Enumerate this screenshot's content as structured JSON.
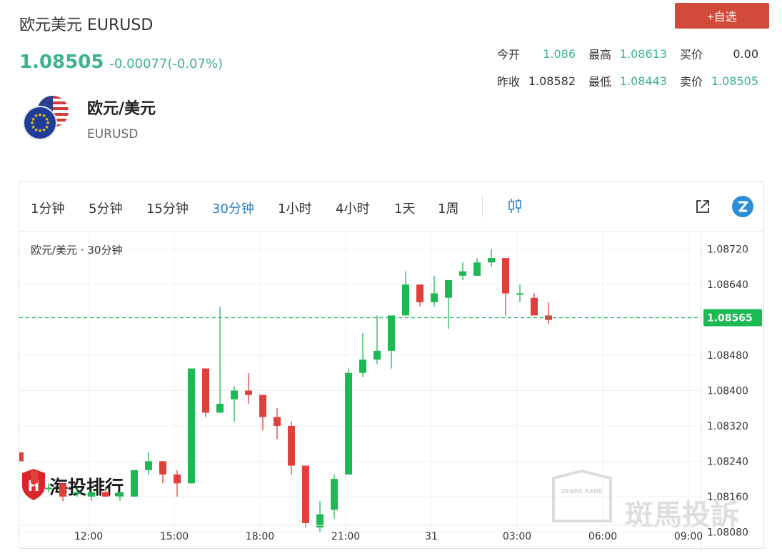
{
  "header": {
    "title": "欧元美元 EURUSD",
    "price": "1.08505",
    "change": "-0.00077(-0.07%)",
    "fav_button": "+自选"
  },
  "stats": [
    [
      {
        "label": "今开",
        "value": "1.086",
        "tone": "green"
      },
      {
        "label": "最高",
        "value": "1.08613",
        "tone": "green"
      },
      {
        "label": "买价",
        "value": "0.00",
        "tone": "dark"
      }
    ],
    [
      {
        "label": "昨收",
        "value": "1.08582",
        "tone": "dark"
      },
      {
        "label": "最低",
        "value": "1.08443",
        "tone": "green"
      },
      {
        "label": "卖价",
        "value": "1.08505",
        "tone": "green"
      }
    ]
  ],
  "pair": {
    "name": "欧元/美元",
    "code": "EURUSD"
  },
  "toolbar": {
    "intervals": [
      "1分钟",
      "5分钟",
      "15分钟",
      "30分钟",
      "1小时",
      "4小时",
      "1天",
      "1周"
    ],
    "active": "30分钟"
  },
  "colors": {
    "up": "#1db954",
    "down": "#e0403c",
    "accent": "#3cb38a",
    "blue": "#2a7ec4"
  },
  "chart_data": {
    "type": "candlestick",
    "legend": "欧元/美元 · 30分钟",
    "current_price": "1.08565",
    "y_ticks": [
      "1.08720",
      "1.08640",
      "1.08480",
      "1.08400",
      "1.08320",
      "1.08240",
      "1.08160",
      "1.08080"
    ],
    "y_tick_values": [
      1.0872,
      1.0864,
      1.0848,
      1.084,
      1.0832,
      1.0824,
      1.0816,
      1.0808
    ],
    "ylim": [
      1.0804,
      1.0876
    ],
    "x_ticks": [
      "12:00",
      "15:00",
      "18:00",
      "21:00",
      "31",
      "03:00",
      "06:00",
      "09:00"
    ],
    "x_tick_index": [
      4.8,
      10.8,
      16.8,
      22.8,
      28.8,
      34.8,
      40.8,
      46.8
    ],
    "candles": [
      {
        "o": 1.0826,
        "h": 1.0826,
        "l": 1.0824,
        "c": 1.0824
      },
      {
        "o": 1.0822,
        "h": 1.0822,
        "l": 1.0817,
        "c": 1.0819
      },
      {
        "o": 1.0818,
        "h": 1.0819,
        "l": 1.0817,
        "c": 1.0818
      },
      {
        "o": 1.0819,
        "h": 1.0819,
        "l": 1.0815,
        "c": 1.0816
      },
      {
        "o": 1.0817,
        "h": 1.0818,
        "l": 1.0816,
        "c": 1.0817
      },
      {
        "o": 1.0816,
        "h": 1.0818,
        "l": 1.0815,
        "c": 1.0817
      },
      {
        "o": 1.0817,
        "h": 1.0818,
        "l": 1.0816,
        "c": 1.0816
      },
      {
        "o": 1.0816,
        "h": 1.0817,
        "l": 1.0815,
        "c": 1.0817
      },
      {
        "o": 1.0816,
        "h": 1.0822,
        "l": 1.0816,
        "c": 1.0822
      },
      {
        "o": 1.0822,
        "h": 1.0826,
        "l": 1.0821,
        "c": 1.0824
      },
      {
        "o": 1.0824,
        "h": 1.0824,
        "l": 1.0819,
        "c": 1.0821
      },
      {
        "o": 1.0821,
        "h": 1.0822,
        "l": 1.0816,
        "c": 1.0819
      },
      {
        "o": 1.0819,
        "h": 1.0845,
        "l": 1.0819,
        "c": 1.0845
      },
      {
        "o": 1.0845,
        "h": 1.0845,
        "l": 1.0834,
        "c": 1.0835
      },
      {
        "o": 1.0835,
        "h": 1.0859,
        "l": 1.0835,
        "c": 1.0837
      },
      {
        "o": 1.0838,
        "h": 1.0841,
        "l": 1.0833,
        "c": 1.084
      },
      {
        "o": 1.084,
        "h": 1.0844,
        "l": 1.0837,
        "c": 1.0839
      },
      {
        "o": 1.0839,
        "h": 1.0839,
        "l": 1.0831,
        "c": 1.0834
      },
      {
        "o": 1.0834,
        "h": 1.0836,
        "l": 1.0829,
        "c": 1.0832
      },
      {
        "o": 1.0832,
        "h": 1.0833,
        "l": 1.0821,
        "c": 1.0823
      },
      {
        "o": 1.0823,
        "h": 1.0823,
        "l": 1.0809,
        "c": 1.081
      },
      {
        "o": 1.0809,
        "h": 1.0815,
        "l": 1.0808,
        "c": 1.0812
      },
      {
        "o": 1.0813,
        "h": 1.0821,
        "l": 1.0811,
        "c": 1.082
      },
      {
        "o": 1.0821,
        "h": 1.0845,
        "l": 1.0821,
        "c": 1.0844
      },
      {
        "o": 1.0844,
        "h": 1.0853,
        "l": 1.0843,
        "c": 1.0847
      },
      {
        "o": 1.0847,
        "h": 1.0857,
        "l": 1.0846,
        "c": 1.0849
      },
      {
        "o": 1.0849,
        "h": 1.0857,
        "l": 1.0845,
        "c": 1.0857
      },
      {
        "o": 1.0857,
        "h": 1.0867,
        "l": 1.0857,
        "c": 1.0864
      },
      {
        "o": 1.0864,
        "h": 1.0864,
        "l": 1.0859,
        "c": 1.086
      },
      {
        "o": 1.086,
        "h": 1.0866,
        "l": 1.0859,
        "c": 1.0862
      },
      {
        "o": 1.0861,
        "h": 1.0865,
        "l": 1.0854,
        "c": 1.0865
      },
      {
        "o": 1.0866,
        "h": 1.0869,
        "l": 1.0865,
        "c": 1.0867
      },
      {
        "o": 1.0866,
        "h": 1.087,
        "l": 1.0866,
        "c": 1.0869
      },
      {
        "o": 1.0869,
        "h": 1.0872,
        "l": 1.0868,
        "c": 1.087
      },
      {
        "o": 1.087,
        "h": 1.087,
        "l": 1.0857,
        "c": 1.0862
      },
      {
        "o": 1.0862,
        "h": 1.0864,
        "l": 1.086,
        "c": 1.0862
      },
      {
        "o": 1.0861,
        "h": 1.0862,
        "l": 1.0857,
        "c": 1.0857
      },
      {
        "o": 1.0857,
        "h": 1.086,
        "l": 1.0855,
        "c": 1.0856
      }
    ]
  },
  "watermarks": {
    "left": "海投排行",
    "right": "斑馬投訴",
    "badge": "ZEBRA RANK"
  }
}
